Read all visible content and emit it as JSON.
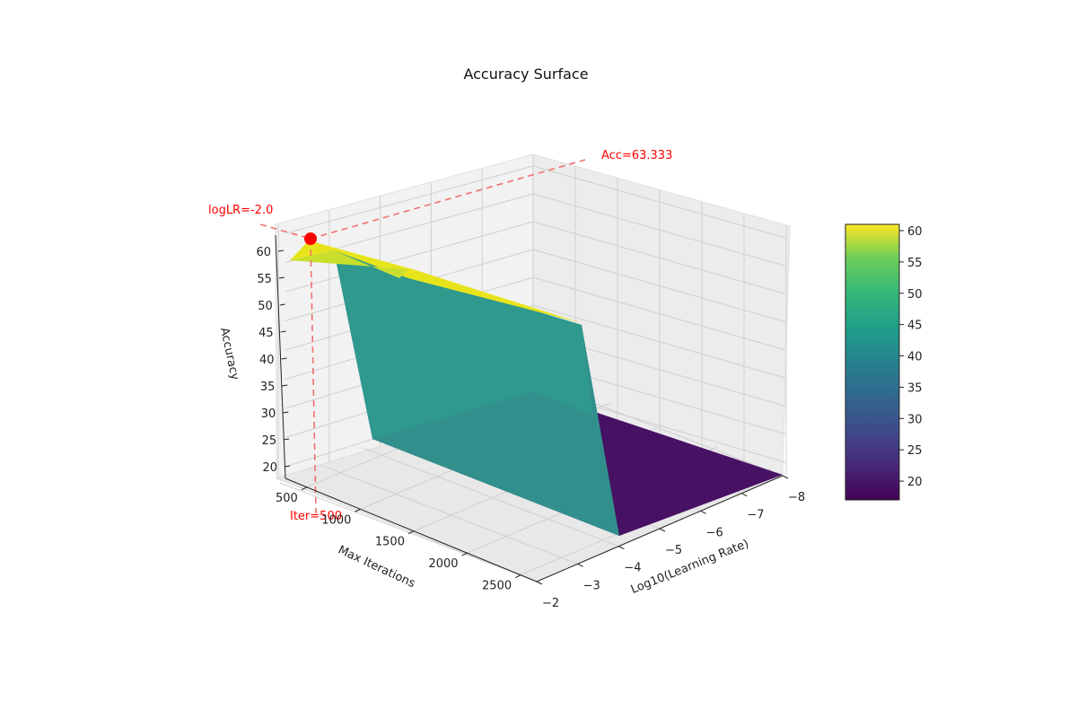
{
  "chart_data": {
    "type": "surface3d",
    "title": "Accuracy Surface",
    "xlabel": "Log10(Learning Rate)",
    "ylabel": "Max Iterations",
    "zlabel": "Accuracy",
    "x_ticks": [
      "−2",
      "−3",
      "−4",
      "−5",
      "−6",
      "−7",
      "−8"
    ],
    "y_ticks": [
      "500",
      "1000",
      "1500",
      "2000",
      "2500"
    ],
    "z_ticks": [
      "20",
      "25",
      "30",
      "35",
      "40",
      "45",
      "50",
      "55",
      "60"
    ],
    "colorbar_ticks": [
      "20",
      "25",
      "30",
      "35",
      "40",
      "45",
      "50",
      "55",
      "60"
    ],
    "colormap": "viridis",
    "colorbar_range": [
      17,
      61
    ],
    "surface_regions": [
      {
        "log_lr": -2.0,
        "accuracy": 60,
        "color": "#dde318"
      },
      {
        "log_lr": -3.0,
        "accuracy": 38,
        "color": "#2a8a8c"
      },
      {
        "log_lr": -8.0,
        "accuracy": 17,
        "color": "#471164"
      }
    ],
    "best_point": {
      "log_lr": -2.0,
      "max_iter": 500,
      "accuracy": 63.333
    },
    "annotations": {
      "acc_label": "Acc=63.333",
      "lr_label": "logLR=-2.0",
      "iter_label": "Iter=500"
    },
    "colors": {
      "highlight": "#ff0000",
      "guide": "#f08080",
      "pane": "#f2f2f2",
      "grid": "#cccccc"
    }
  }
}
